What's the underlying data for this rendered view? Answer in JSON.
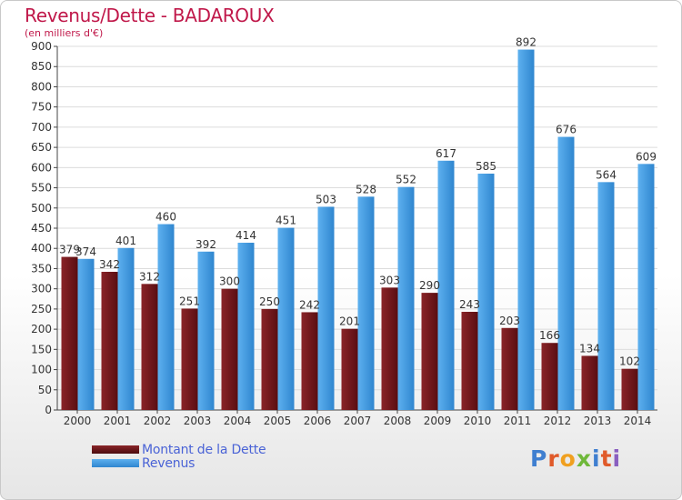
{
  "chart_data": {
    "type": "bar",
    "title": "Revenus/Dette - BADAROUX",
    "subtitle": "(en milliers d'€)",
    "categories": [
      "2000",
      "2001",
      "2002",
      "2003",
      "2004",
      "2005",
      "2006",
      "2007",
      "2008",
      "2009",
      "2010",
      "2011",
      "2012",
      "2013",
      "2014"
    ],
    "series": [
      {
        "name": "Montant de la Dette",
        "color": "#7a1a1e",
        "values": [
          379,
          342,
          312,
          251,
          300,
          250,
          242,
          201,
          303,
          290,
          243,
          203,
          166,
          134,
          102
        ]
      },
      {
        "name": "Revenus",
        "color": "#4aa0e6",
        "values": [
          374,
          401,
          460,
          392,
          414,
          451,
          503,
          528,
          552,
          617,
          585,
          892,
          676,
          564,
          609
        ]
      }
    ],
    "ylim": [
      0,
      900
    ],
    "yticks": [
      0,
      50,
      100,
      150,
      200,
      250,
      300,
      350,
      400,
      450,
      500,
      550,
      600,
      650,
      700,
      750,
      800,
      850,
      900
    ],
    "grid": true,
    "legend_position": "bottom-left"
  },
  "logo": {
    "letters": [
      "P",
      "r",
      "o",
      "x",
      "i",
      "t",
      "i"
    ]
  }
}
